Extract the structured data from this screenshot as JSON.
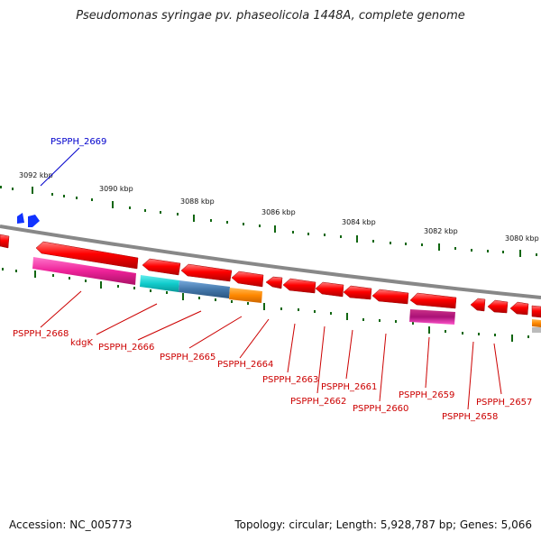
{
  "title": "Pseudomonas syringae pv. phaseolicola 1448A, complete genome",
  "footer": {
    "accession": "Accession: NC_005773",
    "summary": "Topology: circular; Length: 5,928,787 bp; Genes: 5,066"
  },
  "colors": {
    "gene_red": "#ff0000",
    "magenta": "#ee2299",
    "cyan": "#11cccc",
    "steel_blue": "#4477aa",
    "orange": "#ff8800",
    "blue": "#0000ff",
    "tick_green": "#116611",
    "backbone": "#888888"
  },
  "kbp_labels": [
    "3092 kbp",
    "3090 kbp",
    "3088 kbp",
    "3086 kbp",
    "3084 kbp",
    "3082 kbp",
    "3080 kbp"
  ],
  "gene_labels": [
    {
      "name": "PSPPH_2669",
      "color": "#0000cc"
    },
    {
      "name": "PSPPH_2668",
      "color": "#cc0000"
    },
    {
      "name": "kdgK",
      "color": "#cc0000"
    },
    {
      "name": "PSPPH_2666",
      "color": "#cc0000"
    },
    {
      "name": "PSPPH_2665",
      "color": "#cc0000"
    },
    {
      "name": "PSPPH_2664",
      "color": "#cc0000"
    },
    {
      "name": "PSPPH_2663",
      "color": "#cc0000"
    },
    {
      "name": "PSPPH_2662",
      "color": "#cc0000"
    },
    {
      "name": "PSPPH_2661",
      "color": "#cc0000"
    },
    {
      "name": "PSPPH_2660",
      "color": "#cc0000"
    },
    {
      "name": "PSPPH_2659",
      "color": "#cc0000"
    },
    {
      "name": "PSPPH_2658",
      "color": "#cc0000"
    },
    {
      "name": "PSPPH_2657",
      "color": "#cc0000"
    }
  ]
}
